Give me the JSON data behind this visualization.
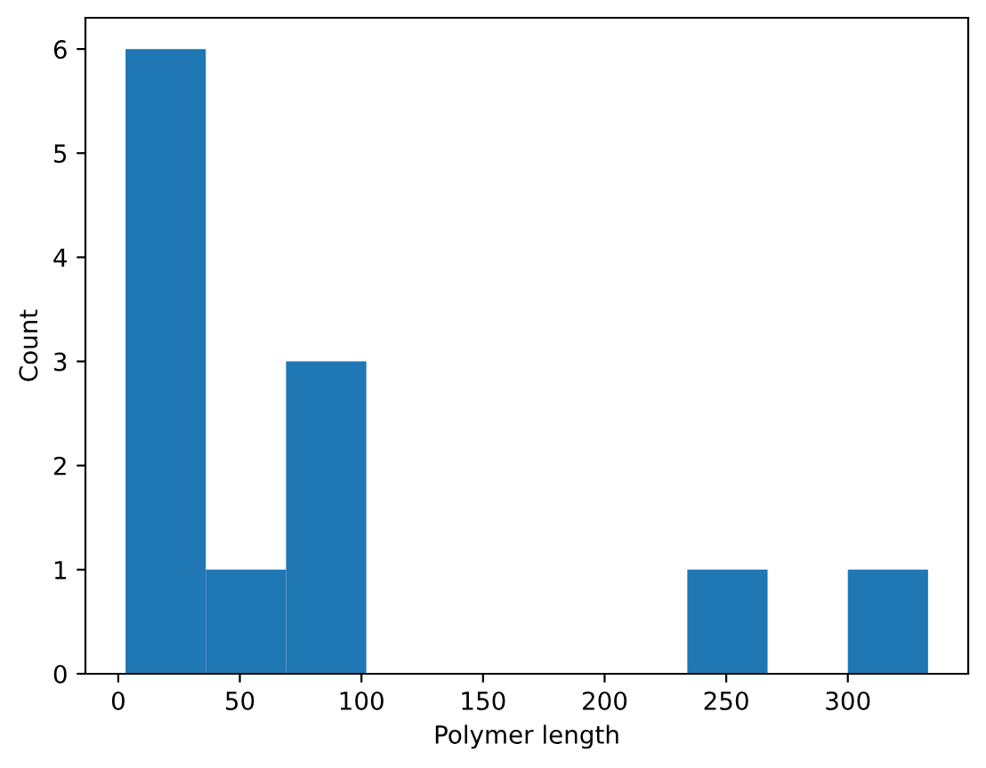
{
  "chart_data": {
    "type": "histogram",
    "xlabel": "Polymer length",
    "ylabel": "Count",
    "bins": [
      3,
      36,
      69,
      102,
      135,
      168,
      201,
      234,
      267,
      300,
      333
    ],
    "values": [
      6,
      1,
      3,
      0,
      0,
      0,
      0,
      1,
      0,
      1
    ],
    "color": "#1f77b4",
    "xlim": [
      -13.5,
      349.5
    ],
    "xticks": [
      0,
      50,
      100,
      150,
      200,
      250,
      300
    ],
    "ylim": [
      0,
      6.3
    ],
    "yticks": [
      0,
      1,
      2,
      3,
      4,
      5,
      6
    ],
    "grid": false,
    "legend": false
  }
}
